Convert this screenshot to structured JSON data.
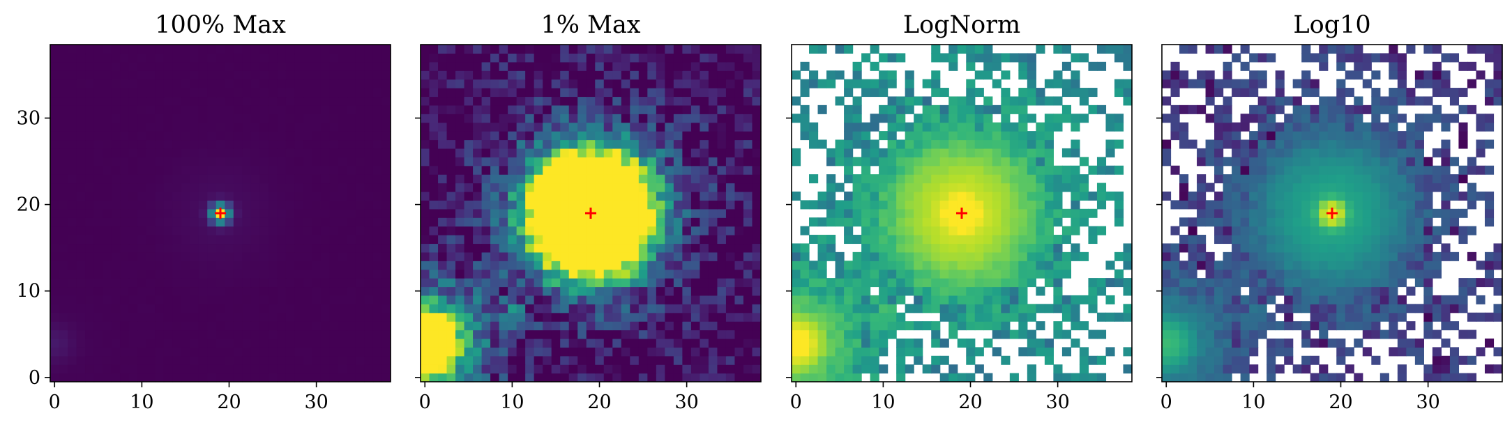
{
  "figure": {
    "panels": [
      {
        "title": "100% Max",
        "style": "linear-100"
      },
      {
        "title": "1% Max",
        "style": "linear-1"
      },
      {
        "title": "LogNorm",
        "style": "lognorm"
      },
      {
        "title": "Log10",
        "style": "log10"
      }
    ],
    "x_ticks": [
      0,
      10,
      20,
      30
    ],
    "y_ticks": [
      0,
      10,
      20,
      30
    ],
    "y_tick_labels_on_first_panel_only": true,
    "grid": false,
    "colormap": "viridis",
    "colors": {
      "viridis_min": "#440154",
      "viridis_mid": "#21918c",
      "viridis_max": "#fde725",
      "background_nan": "#ffffff",
      "marker": "#ff0000"
    }
  },
  "chart_data": [
    {
      "type": "heatmap",
      "title": "100% Max",
      "grid_shape": [
        39,
        39
      ],
      "xlim": [
        -0.5,
        38.5
      ],
      "ylim": [
        -0.5,
        38.5
      ],
      "x_ticks": [
        0,
        10,
        20,
        30
      ],
      "y_ticks": [
        0,
        10,
        20,
        30
      ],
      "sources": [
        {
          "x": 19,
          "y": 19,
          "peak": 1.0
        },
        {
          "x": 0,
          "y": 4,
          "peak": 0.06
        }
      ],
      "marker": {
        "x": 19,
        "y": 19,
        "symbol": "+",
        "color": "#ff0000"
      }
    },
    {
      "type": "heatmap",
      "title": "1% Max",
      "grid_shape": [
        39,
        39
      ],
      "xlim": [
        -0.5,
        38.5
      ],
      "ylim": [
        -0.5,
        38.5
      ],
      "x_ticks": [
        0,
        10,
        20,
        30
      ],
      "y_ticks": [
        0,
        10,
        20,
        30
      ],
      "vmax_fraction_of_peak": 0.01,
      "marker": {
        "x": 19,
        "y": 19,
        "symbol": "+",
        "color": "#ff0000"
      }
    },
    {
      "type": "heatmap",
      "title": "LogNorm",
      "grid_shape": [
        39,
        39
      ],
      "xlim": [
        -0.5,
        38.5
      ],
      "ylim": [
        -0.5,
        38.5
      ],
      "x_ticks": [
        0,
        10,
        20,
        30
      ],
      "y_ticks": [
        0,
        10,
        20,
        30
      ],
      "norm": "log",
      "marker": {
        "x": 19,
        "y": 19,
        "symbol": "+",
        "color": "#ff0000"
      }
    },
    {
      "type": "heatmap",
      "title": "Log10",
      "grid_shape": [
        39,
        39
      ],
      "xlim": [
        -0.5,
        38.5
      ],
      "ylim": [
        -0.5,
        38.5
      ],
      "x_ticks": [
        0,
        10,
        20,
        30
      ],
      "y_ticks": [
        0,
        10,
        20,
        30
      ],
      "norm": "log10",
      "marker": {
        "x": 19,
        "y": 19,
        "symbol": "+",
        "color": "#ff0000"
      }
    }
  ]
}
